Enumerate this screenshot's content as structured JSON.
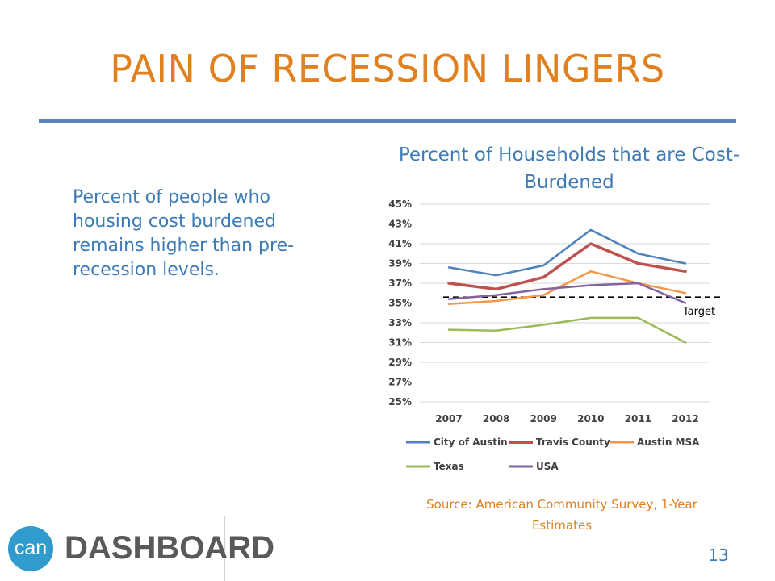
{
  "slide": {
    "title": "PAIN OF RECESSION LINGERS",
    "body_text": "Percent of people who housing cost burdened remains higher than pre-recession levels.",
    "source": "Source:  American Community Survey, 1-Year Estimates",
    "page_number": "13",
    "logo": {
      "circle_text": "can",
      "word": "DASHBOARD",
      "color": "#2f9ccd"
    }
  },
  "chart_data": {
    "type": "line",
    "title": "Percent of Households that are Cost-Burdened",
    "categories": [
      "2007",
      "2008",
      "2009",
      "2010",
      "2011",
      "2012"
    ],
    "y_ticks": [
      "25%",
      "27%",
      "29%",
      "31%",
      "33%",
      "35%",
      "37%",
      "39%",
      "41%",
      "43%",
      "45%"
    ],
    "ylim": [
      25,
      45
    ],
    "grid": true,
    "legend_position": "bottom",
    "series": [
      {
        "name": "City of Austin",
        "values": [
          38.6,
          37.8,
          38.8,
          42.4,
          40.0,
          39.0
        ],
        "color": "#4f81bd",
        "width": 2.5
      },
      {
        "name": "Travis County",
        "values": [
          37.0,
          36.4,
          37.6,
          41.0,
          39.0,
          38.2
        ],
        "color": "#c0504d",
        "width": 3.5
      },
      {
        "name": "Austin MSA",
        "values": [
          34.9,
          35.2,
          35.8,
          38.2,
          37.0,
          36.0
        ],
        "color": "#f79646",
        "width": 2.5
      },
      {
        "name": "Texas",
        "values": [
          32.3,
          32.2,
          32.8,
          33.5,
          33.5,
          31.0
        ],
        "color": "#9bbb59",
        "width": 2.5
      },
      {
        "name": "USA",
        "values": [
          35.4,
          35.8,
          36.4,
          36.8,
          37.0,
          35.0
        ],
        "color": "#8064a2",
        "width": 2.5
      }
    ],
    "target": {
      "label": "Target",
      "value": 35.6
    }
  }
}
